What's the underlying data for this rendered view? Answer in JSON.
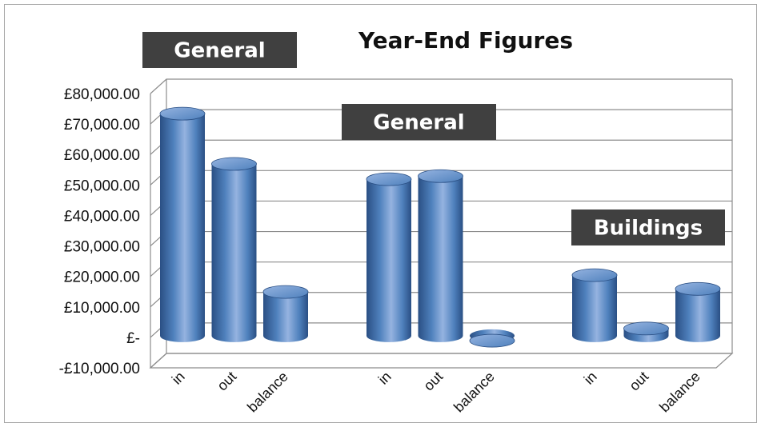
{
  "chart_data": {
    "type": "bar",
    "style": "3d-cylinder",
    "title": "Year-End Figures",
    "categories": [
      "in",
      "out",
      "balance",
      "in",
      "out",
      "balance",
      "in",
      "out",
      "balance"
    ],
    "groups": [
      {
        "label": "General",
        "values": [
          75500,
          59000,
          17000
        ]
      },
      {
        "label": "General",
        "values": [
          54000,
          55000,
          1000
        ]
      },
      {
        "label": "Buildings",
        "values": [
          22500,
          5000,
          18000
        ]
      }
    ],
    "y_ticks": [
      "£80,000.00",
      "£70,000.00",
      "£60,000.00",
      "£50,000.00",
      "£40,000.00",
      "£30,000.00",
      "£20,000.00",
      "£10,000.00",
      "£-",
      "-£10,000.00"
    ],
    "ylim": [
      -10000,
      80000
    ],
    "grid": true,
    "legend": "none",
    "colors": {
      "bar": "#4f81bd",
      "bar_dark": "#2a4f84",
      "bar_light": "#95b3e0",
      "label_bg": "#404040",
      "grid": "#8c8c8c"
    }
  }
}
